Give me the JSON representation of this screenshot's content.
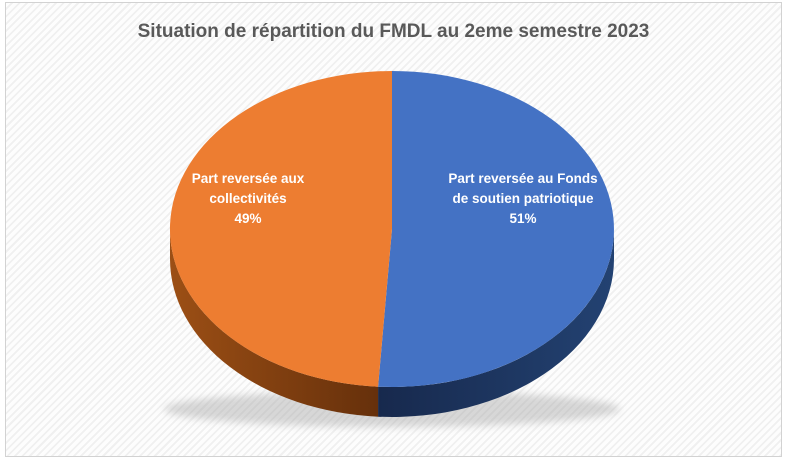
{
  "chart_data": {
    "type": "pie",
    "effect": "3d",
    "title": "Situation de répartition du FMDL au 2eme semestre 2023",
    "title_color": "#595959",
    "legend": "none",
    "labels_inside": true,
    "start_angle_deg": -90,
    "direction": "clockwise",
    "slices": [
      {
        "label": "Part reversée au Fonds de soutien patriotique",
        "label_lines": [
          "Part reversée au Fonds",
          "de soutien patriotique"
        ],
        "pct_text": "51%",
        "value": 51,
        "color": "#4472C4",
        "side_gradient": [
          "#17294D",
          "#234272"
        ]
      },
      {
        "label": "Part reversée aux collectivités",
        "label_lines": [
          "Part reversée aux",
          "collectivités"
        ],
        "pct_text": "49%",
        "value": 49,
        "color": "#ED7D31",
        "side_gradient": [
          "#9C4F15",
          "#66300B"
        ]
      }
    ],
    "label_text_color": "#ffffff"
  }
}
